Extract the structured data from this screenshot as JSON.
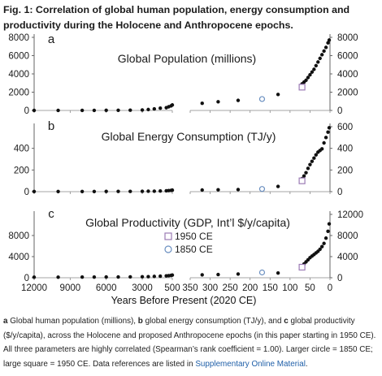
{
  "figure": {
    "title": "Fig. 1: Correlation of global human population, energy consumption and productivity during the Holocene and Anthropocene epochs.",
    "xlabel": "Years Before Present (2020 CE)",
    "legend": [
      {
        "label": "1950 CE",
        "marker": "square",
        "color": "#9b7bb5"
      },
      {
        "label": "1850 CE",
        "marker": "circle",
        "color": "#6a8fc0"
      }
    ]
  },
  "caption": {
    "a": "a",
    "t1": " Global human population (millions), ",
    "b": "b",
    "t2": " global energy consumption (TJ/y), and ",
    "c": "c",
    "t3": " global productivity ($/y/capita), across the Holocene and proposed Anthropocene epochs (in this paper starting in 1950 CE). All three parameters are highly correlated (Spearman’s rank coefficient = 1.00). Larger circle = 1850 CE; large square = 1950 CE. Data references are listed in ",
    "link": "Supplementary Online Material",
    "t4": "."
  },
  "chart_data": [
    {
      "type": "scatter",
      "panel": "a",
      "title": "Global Population (millions)",
      "x_axis_left": {
        "range": [
          12000,
          500
        ],
        "ticks": [
          "12000",
          "9000",
          "6000",
          "3000",
          "500"
        ]
      },
      "x_axis_right": {
        "range": [
          350,
          0
        ],
        "ticks": [
          "350",
          "300",
          "250",
          "200",
          "150",
          "100",
          "50",
          "0"
        ]
      },
      "y_axis_left": {
        "range": [
          0,
          8000
        ],
        "ticks": [
          "0",
          "2000",
          "4000",
          "6000",
          "8000"
        ]
      },
      "y_axis_right": {
        "range": [
          0,
          8000
        ],
        "ticks": [
          "0",
          "2000",
          "4000",
          "6000",
          "8000"
        ]
      },
      "holocene": [
        [
          12000,
          4
        ],
        [
          10000,
          5
        ],
        [
          8000,
          7
        ],
        [
          7000,
          10
        ],
        [
          6000,
          14
        ],
        [
          5000,
          18
        ],
        [
          4000,
          27
        ],
        [
          3000,
          50
        ],
        [
          2500,
          100
        ],
        [
          2000,
          170
        ],
        [
          1500,
          250
        ],
        [
          1000,
          300
        ],
        [
          800,
          400
        ],
        [
          600,
          500
        ],
        [
          500,
          600
        ]
      ],
      "anthropocene": [
        [
          320,
          780
        ],
        [
          280,
          950
        ],
        [
          230,
          1100
        ],
        [
          130,
          1750
        ],
        [
          70,
          2900
        ],
        [
          65,
          3100
        ],
        [
          60,
          3300
        ],
        [
          55,
          3600
        ],
        [
          50,
          3900
        ],
        [
          45,
          4200
        ],
        [
          40,
          4500
        ],
        [
          35,
          4900
        ],
        [
          30,
          5300
        ],
        [
          25,
          5700
        ],
        [
          20,
          6100
        ],
        [
          15,
          6500
        ],
        [
          10,
          6900
        ],
        [
          5,
          7400
        ],
        [
          2,
          7700
        ]
      ],
      "marker_1850": [
        170,
        1250
      ],
      "marker_1950": [
        70,
        2550
      ]
    },
    {
      "type": "scatter",
      "panel": "b",
      "title": "Global Energy Consumption (TJ/y)",
      "x_axis_left": {
        "range": [
          12000,
          500
        ],
        "ticks": [
          "12000",
          "9000",
          "6000",
          "3000",
          "500"
        ]
      },
      "x_axis_right": {
        "range": [
          350,
          0
        ],
        "ticks": [
          "350",
          "300",
          "250",
          "200",
          "150",
          "100",
          "50",
          "0"
        ]
      },
      "y_axis_left": {
        "range": [
          0,
          600
        ],
        "ticks": [
          "0",
          "200",
          "400"
        ]
      },
      "y_axis_right": {
        "range": [
          0,
          600
        ],
        "ticks": [
          "0",
          "200",
          "400",
          "600"
        ]
      },
      "holocene": [
        [
          12000,
          1
        ],
        [
          10000,
          1
        ],
        [
          8000,
          1
        ],
        [
          7000,
          1
        ],
        [
          6000,
          2
        ],
        [
          5000,
          2
        ],
        [
          4000,
          2
        ],
        [
          3000,
          3
        ],
        [
          2500,
          4
        ],
        [
          2000,
          4
        ],
        [
          1500,
          6
        ],
        [
          1000,
          8
        ],
        [
          800,
          10
        ],
        [
          600,
          12
        ],
        [
          500,
          14
        ]
      ],
      "anthropocene": [
        [
          320,
          15
        ],
        [
          280,
          17
        ],
        [
          230,
          19
        ],
        [
          130,
          48
        ],
        [
          70,
          120
        ],
        [
          65,
          145
        ],
        [
          60,
          175
        ],
        [
          55,
          215
        ],
        [
          50,
          250
        ],
        [
          45,
          280
        ],
        [
          40,
          310
        ],
        [
          35,
          340
        ],
        [
          30,
          365
        ],
        [
          25,
          380
        ],
        [
          20,
          395
        ],
        [
          15,
          450
        ],
        [
          10,
          500
        ],
        [
          5,
          550
        ],
        [
          2,
          590
        ]
      ],
      "marker_1850": [
        170,
        25
      ],
      "marker_1950": [
        70,
        100
      ]
    },
    {
      "type": "scatter",
      "panel": "c",
      "title": "Global Productivity (GDP, Int’l $/y/capita)",
      "x_axis_left": {
        "range": [
          12000,
          500
        ],
        "ticks": [
          "12000",
          "9000",
          "6000",
          "3000",
          "500"
        ]
      },
      "x_axis_right": {
        "range": [
          350,
          0
        ],
        "ticks": [
          "350",
          "300",
          "250",
          "200",
          "150",
          "100",
          "50",
          "0"
        ]
      },
      "y_axis_left": {
        "range": [
          0,
          12000
        ],
        "ticks": [
          "0",
          "4000",
          "8000"
        ]
      },
      "y_axis_right": {
        "range": [
          0,
          12000
        ],
        "ticks": [
          "0",
          "4000",
          "8000",
          "12000"
        ]
      },
      "holocene": [
        [
          12000,
          100
        ],
        [
          10000,
          110
        ],
        [
          8000,
          120
        ],
        [
          7000,
          130
        ],
        [
          6000,
          140
        ],
        [
          5000,
          150
        ],
        [
          4000,
          160
        ],
        [
          3000,
          180
        ],
        [
          2500,
          200
        ],
        [
          2000,
          250
        ],
        [
          1500,
          300
        ],
        [
          1000,
          350
        ],
        [
          800,
          400
        ],
        [
          600,
          450
        ],
        [
          500,
          500
        ]
      ],
      "anthropocene": [
        [
          320,
          550
        ],
        [
          280,
          600
        ],
        [
          230,
          700
        ],
        [
          130,
          900
        ],
        [
          70,
          2200
        ],
        [
          65,
          2600
        ],
        [
          60,
          3000
        ],
        [
          55,
          3400
        ],
        [
          50,
          3800
        ],
        [
          45,
          4100
        ],
        [
          40,
          4400
        ],
        [
          35,
          4700
        ],
        [
          30,
          5000
        ],
        [
          25,
          5400
        ],
        [
          20,
          5900
        ],
        [
          15,
          6500
        ],
        [
          10,
          7500
        ],
        [
          5,
          8800
        ],
        [
          2,
          10200
        ]
      ],
      "marker_1850": [
        170,
        1000
      ],
      "marker_1950": [
        70,
        2000
      ]
    }
  ]
}
